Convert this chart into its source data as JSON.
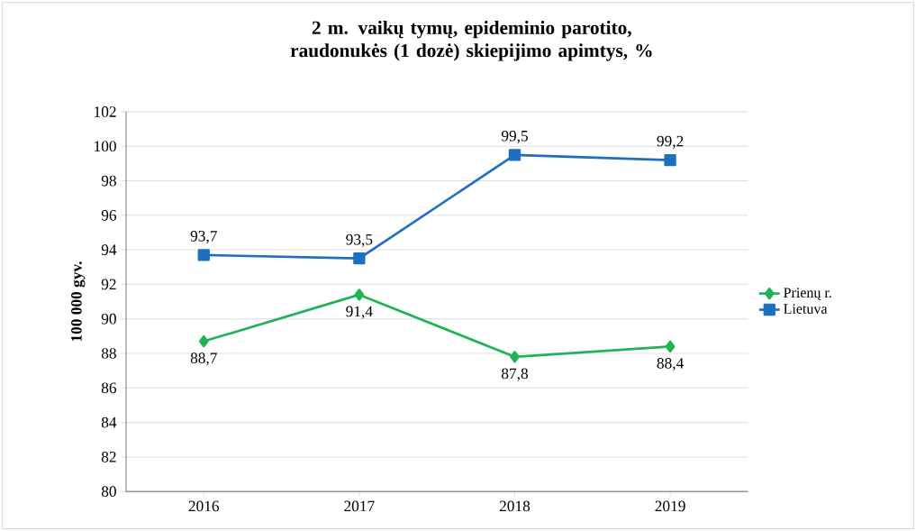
{
  "chart_data": {
    "type": "line",
    "title": "2 m. vaikų tymų, epideminio parotito, raudonukės (1 dozė) skiepijimo apimtys, %",
    "ylabel": "100 000 gyv.",
    "categories": [
      "2016",
      "2017",
      "2018",
      "2019"
    ],
    "series": [
      {
        "name": "Prienų r.",
        "color": "#1fb356",
        "marker": "diamond",
        "values": [
          88.7,
          91.4,
          87.8,
          88.4
        ],
        "value_labels": [
          "88,7",
          "91,4",
          "87,8",
          "88,4"
        ]
      },
      {
        "name": "Lietuva",
        "color": "#1f6fc0",
        "marker": "square",
        "values": [
          93.7,
          93.5,
          99.5,
          99.2
        ],
        "value_labels": [
          "93,7",
          "93,5",
          "99,5",
          "99,2"
        ]
      }
    ],
    "ylim": [
      80,
      102
    ],
    "yticks": [
      80,
      82,
      84,
      86,
      88,
      90,
      92,
      94,
      96,
      98,
      100,
      102
    ],
    "grid": "y",
    "legend": "right",
    "line_style": "solid"
  }
}
